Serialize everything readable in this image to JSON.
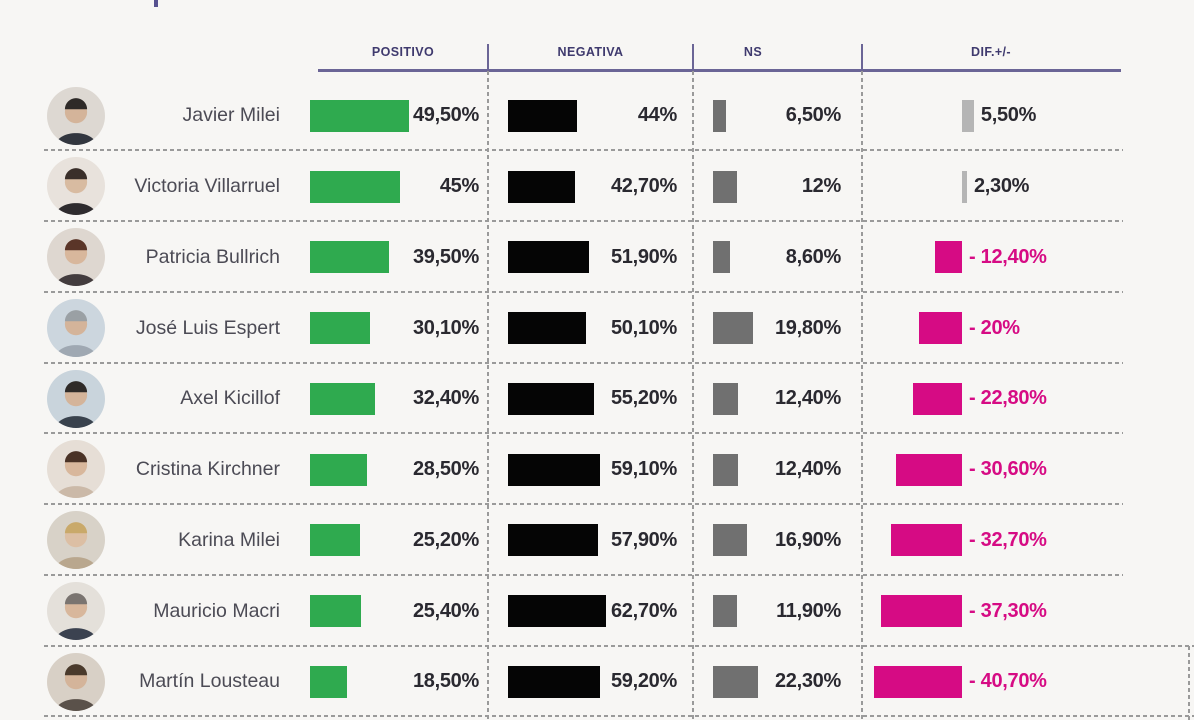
{
  "header": {
    "columns": [
      "POSITIVO",
      "NEGATIVA",
      "NS",
      "DIF.+/-"
    ]
  },
  "colors": {
    "background": "#f7f6f4",
    "header_text": "#3f3a6e",
    "header_line": "#6b6596",
    "dashed_line": "#9a9a9a",
    "name_text": "#4c4b55",
    "value_text": "#2a2930",
    "positivo_bar": "#2faa4f",
    "negativa_bar": "#050505",
    "ns_bar": "#707070",
    "dif_positive_bar": "#b5b5b5",
    "dif_negative": "#d60b84"
  },
  "chart_data": {
    "type": "bar",
    "orientation": "horizontal",
    "layout": "table-of-bars",
    "title": "",
    "categories": [
      "Javier Milei",
      "Victoria Villarruel",
      "Patricia Bullrich",
      "José Luis Espert",
      "Axel Kicillof",
      "Cristina Kirchner",
      "Karina Milei",
      "Mauricio Macri",
      "Martín Lousteau"
    ],
    "series": [
      {
        "name": "POSITIVO",
        "color": "#2faa4f",
        "values": [
          49.5,
          45,
          39.5,
          30.1,
          32.4,
          28.5,
          25.2,
          25.4,
          18.5
        ],
        "labels": [
          "49,50%",
          "45%",
          "39,50%",
          "30,10%",
          "32,40%",
          "28,50%",
          "25,20%",
          "25,40%",
          "18,50%"
        ]
      },
      {
        "name": "NEGATIVA",
        "color": "#050505",
        "values": [
          44,
          42.7,
          51.9,
          50.1,
          55.2,
          59.1,
          57.9,
          62.7,
          59.2
        ],
        "labels": [
          "44%",
          "42,70%",
          "51,90%",
          "50,10%",
          "55,20%",
          "59,10%",
          "57,90%",
          "62,70%",
          "59,20%"
        ]
      },
      {
        "name": "NS",
        "color": "#707070",
        "values": [
          6.5,
          12,
          8.6,
          19.8,
          12.4,
          12.4,
          16.9,
          11.9,
          22.3
        ],
        "labels": [
          "6,50%",
          "12%",
          "8,60%",
          "19,80%",
          "12,40%",
          "12,40%",
          "16,90%",
          "11,90%",
          "22,30%"
        ]
      },
      {
        "name": "DIF.+/-",
        "color_positive": "#b5b5b5",
        "color_negative": "#d60b84",
        "values": [
          5.5,
          2.3,
          -12.4,
          -20,
          -22.8,
          -30.6,
          -32.7,
          -37.3,
          -40.7
        ],
        "labels": [
          "5,50%",
          "2,30%",
          "- 12,40%",
          "- 20%",
          "- 22,80%",
          "- 30,60%",
          "- 32,70%",
          "- 37,30%",
          "- 40,70%"
        ]
      }
    ],
    "value_format": "percent, comma decimal separator",
    "grid": "dashed row and column separators"
  },
  "avatars": [
    {
      "person": "Javier Milei",
      "bg": "#ddd8d2",
      "hair": "#2e2a28",
      "suit": "#32363f",
      "skin": "#d4b49a"
    },
    {
      "person": "Victoria Villarruel",
      "bg": "#e8e2dc",
      "hair": "#3a2f2a",
      "suit": "#2e2b2e",
      "skin": "#d8bba1"
    },
    {
      "person": "Patricia Bullrich",
      "bg": "#ded7d0",
      "hair": "#5a3528",
      "suit": "#433c3e",
      "skin": "#d8b79c"
    },
    {
      "person": "José Luis Espert",
      "bg": "#ccd6de",
      "hair": "#9aa0a4",
      "suit": "#9fa8b2",
      "skin": "#d4b49a"
    },
    {
      "person": "Axel Kicillof",
      "bg": "#c9d4dc",
      "hair": "#2f2b28",
      "suit": "#39424d",
      "skin": "#d4b49a"
    },
    {
      "person": "Cristina Kirchner",
      "bg": "#e6ded6",
      "hair": "#4a3226",
      "suit": "#cbb9a8",
      "skin": "#d8b79c"
    },
    {
      "person": "Karina Milei",
      "bg": "#d8d2c8",
      "hair": "#c9a96a",
      "suit": "#b9a78e",
      "skin": "#dcbfa4"
    },
    {
      "person": "Mauricio Macri",
      "bg": "#e4e0da",
      "hair": "#7a7470",
      "suit": "#3b4250",
      "skin": "#d8b79c"
    },
    {
      "person": "Martín Lousteau",
      "bg": "#d8d0c6",
      "hair": "#4a3a2c",
      "suit": "#5a514a",
      "skin": "#d4b49a"
    }
  ]
}
